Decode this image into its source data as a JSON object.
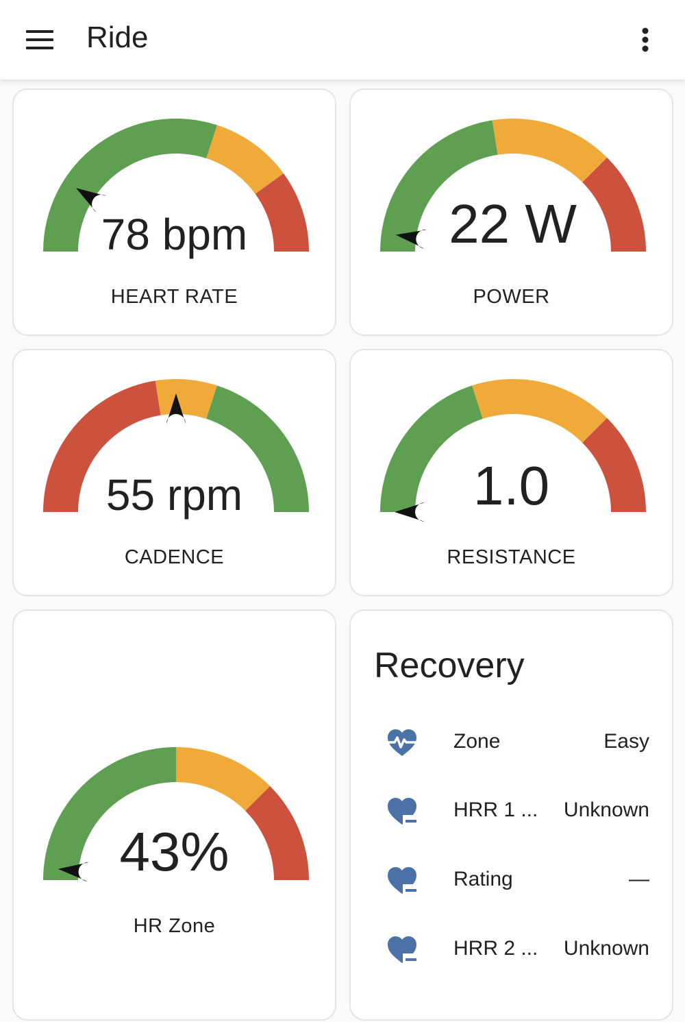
{
  "app_bar": {
    "title": "Ride",
    "menu_icon": "menu-icon",
    "more_icon": "more-vert-icon"
  },
  "colors": {
    "green": "#5f9f51",
    "orange": "#f0aa3a",
    "red": "#cc523e",
    "needle": "#111111",
    "icon_blue": "#4a72a6"
  },
  "gauges": [
    {
      "id": "heart-rate",
      "value": "78 bpm",
      "label": "HEART RATE",
      "needle": 0.18,
      "segments": [
        {
          "to": 0.6,
          "color": "green"
        },
        {
          "to": 0.8,
          "color": "orange"
        },
        {
          "to": 1.0,
          "color": "red"
        }
      ]
    },
    {
      "id": "power",
      "value": "22 W",
      "label": "POWER",
      "needle": 0.045,
      "segments": [
        {
          "to": 0.45,
          "color": "green"
        },
        {
          "to": 0.75,
          "color": "orange"
        },
        {
          "to": 1.0,
          "color": "red"
        }
      ]
    },
    {
      "id": "cadence",
      "value": "55 rpm",
      "label": "CADENCE",
      "needle": 0.5,
      "segments": [
        {
          "to": 0.45,
          "color": "red"
        },
        {
          "to": 0.6,
          "color": "orange"
        },
        {
          "to": 1.0,
          "color": "green"
        }
      ]
    },
    {
      "id": "resistance",
      "value": "1.0",
      "label": "RESISTANCE",
      "needle": 0.0,
      "segments": [
        {
          "to": 0.4,
          "color": "green"
        },
        {
          "to": 0.75,
          "color": "orange"
        },
        {
          "to": 1.0,
          "color": "red"
        }
      ]
    },
    {
      "id": "hr-zone",
      "value": "43%",
      "label": "HR Zone",
      "needle": 0.03,
      "segments": [
        {
          "to": 0.5,
          "color": "green"
        },
        {
          "to": 0.75,
          "color": "orange"
        },
        {
          "to": 1.0,
          "color": "red"
        }
      ]
    }
  ],
  "recovery": {
    "title": "Recovery",
    "rows": [
      {
        "icon": "heart-pulse-icon",
        "name": "Zone",
        "value": "Easy"
      },
      {
        "icon": "heart-minus-icon",
        "name": "HRR 1 ...",
        "value": "Unknown"
      },
      {
        "icon": "heart-minus-icon",
        "name": "Rating",
        "value": "—"
      },
      {
        "icon": "heart-minus-icon",
        "name": "HRR 2 ...",
        "value": "Unknown"
      }
    ]
  }
}
